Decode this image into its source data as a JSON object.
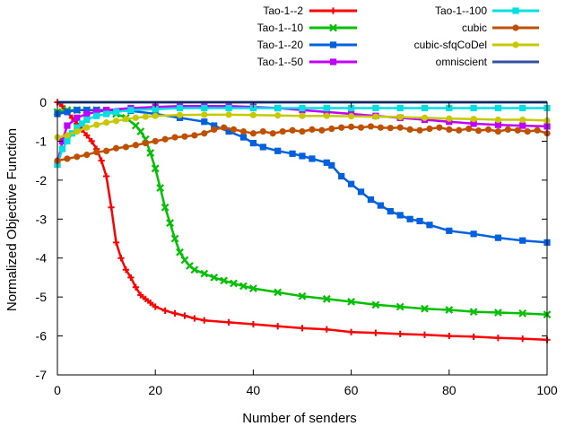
{
  "chart_data": {
    "type": "line",
    "title": "",
    "xlabel": "Number of senders",
    "ylabel": "Normalized Objective Function",
    "xlim": [
      0,
      100
    ],
    "ylim": [
      -7,
      0
    ],
    "xticks": [
      0,
      20,
      40,
      60,
      80,
      100
    ],
    "yticks": [
      0,
      -1,
      -2,
      -3,
      -4,
      -5,
      -6,
      -7
    ],
    "grid": false,
    "legend_position": "top, two columns",
    "series": [
      {
        "name": "Tao-1--2",
        "color": "#ff0000",
        "marker": "plus",
        "x": [
          0,
          1,
          2,
          3,
          4,
          5,
          6,
          7,
          8,
          9,
          10,
          11,
          12,
          13,
          14,
          15,
          16,
          17,
          18,
          19,
          20,
          22,
          24,
          26,
          28,
          30,
          35,
          40,
          45,
          50,
          55,
          60,
          65,
          70,
          75,
          80,
          85,
          90,
          95,
          100
        ],
        "y": [
          0,
          -0.1,
          -0.25,
          -0.4,
          -0.55,
          -0.7,
          -0.85,
          -1.0,
          -1.2,
          -1.5,
          -1.9,
          -2.7,
          -3.6,
          -4.0,
          -4.3,
          -4.5,
          -4.75,
          -4.95,
          -5.05,
          -5.15,
          -5.25,
          -5.35,
          -5.42,
          -5.48,
          -5.55,
          -5.6,
          -5.65,
          -5.7,
          -5.75,
          -5.8,
          -5.83,
          -5.9,
          -5.92,
          -5.95,
          -5.97,
          -6.0,
          -6.02,
          -6.05,
          -6.07,
          -6.1
        ]
      },
      {
        "name": "Tao-1--10",
        "color": "#00c000",
        "marker": "x",
        "x": [
          0,
          2,
          4,
          6,
          8,
          10,
          12,
          14,
          16,
          17,
          18,
          19,
          20,
          21,
          22,
          23,
          24,
          25,
          26,
          27,
          28,
          30,
          32,
          34,
          36,
          38,
          40,
          45,
          50,
          55,
          60,
          65,
          70,
          75,
          80,
          85,
          90,
          95,
          100
        ],
        "y": [
          -0.25,
          -0.2,
          -0.2,
          -0.2,
          -0.2,
          -0.25,
          -0.3,
          -0.4,
          -0.6,
          -0.75,
          -0.95,
          -1.3,
          -1.7,
          -2.2,
          -2.7,
          -3.1,
          -3.5,
          -3.85,
          -4.05,
          -4.2,
          -4.3,
          -4.4,
          -4.5,
          -4.58,
          -4.65,
          -4.72,
          -4.78,
          -4.88,
          -4.98,
          -5.05,
          -5.12,
          -5.2,
          -5.25,
          -5.3,
          -5.33,
          -5.38,
          -5.4,
          -5.42,
          -5.45
        ]
      },
      {
        "name": "Tao-1--20",
        "color": "#0060e0",
        "marker": "square",
        "x": [
          0,
          2,
          4,
          6,
          8,
          10,
          15,
          20,
          25,
          30,
          32,
          35,
          38,
          40,
          42,
          45,
          48,
          50,
          52,
          55,
          56,
          58,
          60,
          62,
          64,
          66,
          68,
          70,
          72,
          74,
          76,
          80,
          85,
          90,
          95,
          100
        ],
        "y": [
          -0.3,
          -0.25,
          -0.2,
          -0.2,
          -0.2,
          -0.2,
          -0.22,
          -0.3,
          -0.4,
          -0.5,
          -0.6,
          -0.75,
          -0.9,
          -1.05,
          -1.15,
          -1.25,
          -1.32,
          -1.38,
          -1.45,
          -1.55,
          -1.62,
          -1.9,
          -2.1,
          -2.3,
          -2.5,
          -2.65,
          -2.8,
          -2.9,
          -3.0,
          -3.05,
          -3.15,
          -3.3,
          -3.38,
          -3.48,
          -3.55,
          -3.6
        ]
      },
      {
        "name": "Tao-1--50",
        "color": "#c000ff",
        "marker": "filled-square",
        "x": [
          0,
          1,
          2,
          4,
          6,
          8,
          10,
          15,
          20,
          25,
          30,
          35,
          40,
          45,
          50,
          55,
          60,
          65,
          70,
          75,
          80,
          85,
          90,
          95,
          100
        ],
        "y": [
          -1.6,
          -1.0,
          -0.6,
          -0.4,
          -0.3,
          -0.25,
          -0.2,
          -0.15,
          -0.12,
          -0.1,
          -0.1,
          -0.1,
          -0.12,
          -0.15,
          -0.2,
          -0.25,
          -0.3,
          -0.35,
          -0.4,
          -0.45,
          -0.5,
          -0.55,
          -0.58,
          -0.6,
          -0.62
        ]
      },
      {
        "name": "Tao-1--100",
        "color": "#00e0e0",
        "marker": "square",
        "x": [
          0,
          1,
          2,
          3,
          4,
          5,
          6,
          8,
          10,
          12,
          15,
          20,
          25,
          30,
          35,
          40,
          45,
          50,
          55,
          60,
          65,
          70,
          75,
          80,
          85,
          90,
          95,
          100
        ],
        "y": [
          -1.6,
          -1.2,
          -1.0,
          -0.8,
          -0.65,
          -0.55,
          -0.45,
          -0.35,
          -0.3,
          -0.25,
          -0.2,
          -0.18,
          -0.15,
          -0.15,
          -0.15,
          -0.15,
          -0.15,
          -0.15,
          -0.15,
          -0.15,
          -0.15,
          -0.15,
          -0.15,
          -0.15,
          -0.15,
          -0.15,
          -0.15,
          -0.15
        ]
      },
      {
        "name": "cubic",
        "color": "#c05000",
        "marker": "filled-circle",
        "x": [
          0,
          2,
          4,
          6,
          8,
          10,
          12,
          14,
          16,
          18,
          20,
          22,
          24,
          26,
          28,
          30,
          32,
          34,
          36,
          38,
          40,
          42,
          44,
          46,
          48,
          50,
          52,
          54,
          56,
          58,
          60,
          62,
          64,
          66,
          68,
          70,
          72,
          74,
          76,
          78,
          80,
          82,
          84,
          86,
          88,
          90,
          92,
          94,
          96,
          98,
          100
        ],
        "y": [
          -1.5,
          -1.45,
          -1.4,
          -1.35,
          -1.28,
          -1.25,
          -1.18,
          -1.15,
          -1.1,
          -1.05,
          -1.0,
          -0.95,
          -0.9,
          -0.88,
          -0.85,
          -0.8,
          -0.7,
          -0.65,
          -0.7,
          -0.75,
          -0.8,
          -0.75,
          -0.8,
          -0.75,
          -0.72,
          -0.75,
          -0.7,
          -0.72,
          -0.68,
          -0.65,
          -0.63,
          -0.65,
          -0.62,
          -0.65,
          -0.66,
          -0.65,
          -0.7,
          -0.72,
          -0.68,
          -0.65,
          -0.7,
          -0.72,
          -0.68,
          -0.73,
          -0.7,
          -0.75,
          -0.7,
          -0.72,
          -0.75,
          -0.72,
          -0.8
        ]
      },
      {
        "name": "cubic-sfqCoDel",
        "color": "#c8c800",
        "marker": "filled-circle",
        "x": [
          0,
          2,
          4,
          6,
          8,
          10,
          12,
          14,
          16,
          18,
          20,
          25,
          30,
          35,
          40,
          45,
          50,
          55,
          60,
          65,
          70,
          75,
          80,
          85,
          90,
          95,
          100
        ],
        "y": [
          -0.9,
          -0.85,
          -0.75,
          -0.65,
          -0.58,
          -0.52,
          -0.48,
          -0.43,
          -0.4,
          -0.37,
          -0.35,
          -0.33,
          -0.32,
          -0.32,
          -0.33,
          -0.34,
          -0.35,
          -0.35,
          -0.36,
          -0.37,
          -0.38,
          -0.4,
          -0.42,
          -0.43,
          -0.45,
          -0.45,
          -0.47
        ]
      },
      {
        "name": "omniscient",
        "color": "#3050a0",
        "marker": "none",
        "x": [
          0,
          100
        ],
        "y": [
          0,
          0
        ]
      }
    ]
  }
}
